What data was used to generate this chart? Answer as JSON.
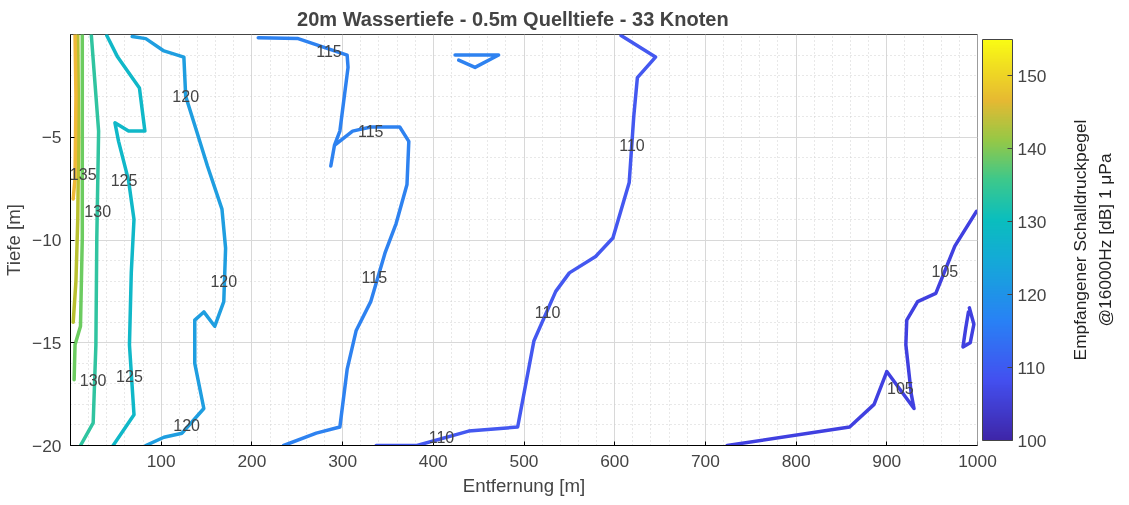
{
  "chart_data": {
    "type": "line",
    "title": "20m Wassertiefe  -  0.5m Quelltiefe  -  33 Knoten",
    "xlabel": "Entfernung [m]",
    "ylabel": "Tiefe [m]",
    "clabel": "Empfangener Schalldruckpegel\n@16000Hz [dB] 1 μPa",
    "clim": [
      100,
      155
    ],
    "cticks": [
      100,
      110,
      120,
      130,
      140,
      150
    ],
    "xlim": [
      0,
      1000
    ],
    "ylim": [
      -20,
      0
    ],
    "xticks": [
      100,
      200,
      300,
      400,
      500,
      600,
      700,
      800,
      900,
      1000
    ],
    "yticks": [
      -20,
      -15,
      -10,
      -5
    ],
    "grid": true,
    "series": [
      {
        "color": "#4040e0",
        "x": [
          999,
          975,
          954,
          934,
          922,
          921,
          927,
          930,
          900,
          886,
          859,
          724
        ],
        "values": [
          -8.6,
          -10.3,
          -12.6,
          -13.0,
          -13.9,
          -15.1,
          -17.5,
          -18.2,
          -16.4,
          -18.0,
          -19.1,
          -20
        ]
      },
      {
        "color": "#4040e0",
        "x": [
          991,
          996,
          992,
          984,
          987,
          990
        ],
        "values": [
          -13.3,
          -14.1,
          -15.0,
          -15.2,
          -14.3,
          -13.5
        ]
      },
      {
        "color": "#4458f0",
        "x": [
          607,
          645,
          625,
          621,
          616,
          598,
          579,
          550,
          535,
          511,
          493,
          439,
          382,
          337
        ],
        "values": [
          -0.05,
          -1.1,
          -2.1,
          -4.0,
          -7.2,
          -9.9,
          -10.8,
          -11.6,
          -12.5,
          -14.9,
          -19.1,
          -19.3,
          -20,
          -20
        ]
      },
      {
        "color": "#2e82f0",
        "x": [
          207,
          251,
          305,
          306,
          297,
          291,
          287,
          291,
          311,
          331,
          363,
          373,
          371,
          359,
          347,
          331,
          315,
          305,
          297,
          271,
          235
        ],
        "values": [
          -0.16,
          -0.2,
          -1.0,
          -1.6,
          -4.7,
          -5.4,
          -6.4,
          -5.4,
          -4.7,
          -4.5,
          -4.5,
          -5.2,
          -7.3,
          -9.2,
          -10.6,
          -13,
          -14.4,
          -16.3,
          -19.1,
          -19.4,
          -20
        ]
      },
      {
        "color": "#2e82f0",
        "x": [
          424,
          472,
          446,
          428
        ],
        "values": [
          -1.0,
          -1.0,
          -1.6,
          -1.25
        ]
      },
      {
        "color": "#1f9ee0",
        "x": [
          68,
          83,
          103,
          125,
          127,
          139,
          151,
          167,
          171,
          169,
          159,
          147,
          137,
          137,
          147,
          123,
          103,
          83
        ],
        "values": [
          -0.1,
          -0.2,
          -0.8,
          -1.1,
          -3.0,
          -4.7,
          -6.4,
          -8.5,
          -10.4,
          -13.0,
          -14.2,
          -13.5,
          -13.9,
          -16.0,
          -18.2,
          -19.4,
          -19.6,
          -20
        ]
      },
      {
        "color": "#10b8c8",
        "x": [
          40,
          52,
          76,
          82,
          64,
          49,
          53,
          64,
          70,
          67,
          65,
          70,
          47
        ],
        "values": [
          -0.05,
          -1.1,
          -2.6,
          -4.7,
          -4.7,
          -4.3,
          -5.2,
          -7.1,
          -9.0,
          -11.6,
          -15.1,
          -18.5,
          -20
        ]
      },
      {
        "color": "#30c4a0",
        "x": [
          23,
          31,
          29,
          28,
          25,
          11
        ],
        "values": [
          -0.05,
          -4.7,
          -9.9,
          -15.1,
          -18.9,
          -20
        ]
      },
      {
        "color": "#6ccc60",
        "x": [
          13,
          13,
          13,
          11,
          5,
          4
        ],
        "values": [
          0,
          -4.7,
          -9.9,
          -14.2,
          -15.1,
          -16.8
        ]
      },
      {
        "color": "#b8c030",
        "x": [
          8,
          9,
          8,
          6,
          3
        ],
        "values": [
          0,
          -5,
          -9,
          -12,
          -14
        ]
      },
      {
        "color": "#f0b838",
        "x": [
          5,
          6,
          5,
          3
        ],
        "values": [
          0,
          -3,
          -7,
          -8
        ]
      }
    ],
    "annotations": [
      {
        "text": "105",
        "x": 964,
        "y": -11.5
      },
      {
        "text": "105",
        "x": 915,
        "y": -17.2
      },
      {
        "text": "110",
        "x": 619,
        "y": -5.4
      },
      {
        "text": "110",
        "x": 526,
        "y": -13.5
      },
      {
        "text": "110",
        "x": 409,
        "y": -19.6
      },
      {
        "text": "115",
        "x": 285,
        "y": -0.8
      },
      {
        "text": "115",
        "x": 331,
        "y": -4.7
      },
      {
        "text": "115",
        "x": 335,
        "y": -11.8
      },
      {
        "text": "120",
        "x": 127,
        "y": -3.0
      },
      {
        "text": "120",
        "x": 169,
        "y": -12.0
      },
      {
        "text": "120",
        "x": 128,
        "y": -19.0
      },
      {
        "text": "125",
        "x": 59,
        "y": -7.1
      },
      {
        "text": "125",
        "x": 65,
        "y": -16.6
      },
      {
        "text": "130",
        "x": 30,
        "y": -8.6
      },
      {
        "text": "130",
        "x": 25,
        "y": -16.8
      },
      {
        "text": "135",
        "x": 14,
        "y": -6.8
      }
    ]
  }
}
